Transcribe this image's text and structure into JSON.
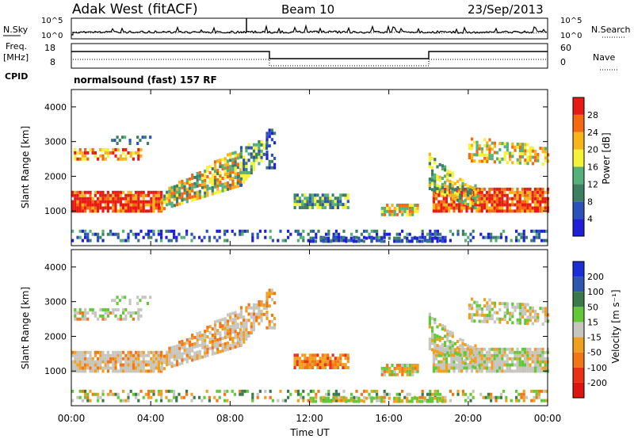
{
  "header": {
    "radar": "Adak West (fitACF)",
    "beam": "Beam 10",
    "date": "23/Sep/2013"
  },
  "noise_panel": {
    "left_label": "N.Sky",
    "right_label": "N.Search",
    "left_ticks": [
      "10^5",
      "10^0"
    ],
    "right_ticks": [
      "10^5",
      "10^0"
    ]
  },
  "freq_panel": {
    "left_label_1": "Freq.",
    "left_label_2": "[MHz]",
    "right_label": "Nave",
    "left_ticks": [
      "18",
      "8"
    ],
    "right_ticks": [
      "60",
      "0"
    ],
    "cpid_label": "CPID",
    "cpid_text": "normalsound (fast) 157 RF"
  },
  "colors": {
    "power": [
      "#1f1fd6",
      "#2a52b8",
      "#3e7f64",
      "#55b07a",
      "#f6f236",
      "#f7b51b",
      "#f56a10",
      "#e81b14"
    ],
    "velocity": [
      "#1c2fd4",
      "#2e55b0",
      "#3a7a4a",
      "#63c838",
      "#c7c5bf",
      "#f0a020",
      "#f27616",
      "#e83214",
      "#e0140f"
    ]
  },
  "chart_data": [
    {
      "type": "heatmap",
      "ylabel": "Slant Range [km]",
      "ylim": [
        0,
        4500
      ],
      "yticks": [
        "1000",
        "2000",
        "3000",
        "4000"
      ],
      "xlim_hours": [
        0,
        24
      ],
      "xticks": [
        "00:00",
        "04:00",
        "08:00",
        "12:00",
        "16:00",
        "20:00",
        "00:00"
      ],
      "colorbar": {
        "label": "Power [dB]",
        "ticks": [
          "4",
          "8",
          "12",
          "16",
          "20",
          "24",
          "28"
        ]
      }
    },
    {
      "type": "heatmap",
      "ylabel": "Slant Range [km]",
      "xlabel": "Time UT",
      "ylim": [
        0,
        4500
      ],
      "yticks": [
        "1000",
        "2000",
        "3000",
        "4000"
      ],
      "xlim_hours": [
        0,
        24
      ],
      "xticks": [
        "00:00",
        "04:00",
        "08:00",
        "12:00",
        "16:00",
        "20:00",
        "00:00"
      ],
      "colorbar": {
        "label": "Velocity [m s⁻¹]",
        "ticks": [
          "200",
          "100",
          "50",
          "15",
          "-15",
          "-50",
          "-100",
          "-200"
        ]
      }
    }
  ]
}
